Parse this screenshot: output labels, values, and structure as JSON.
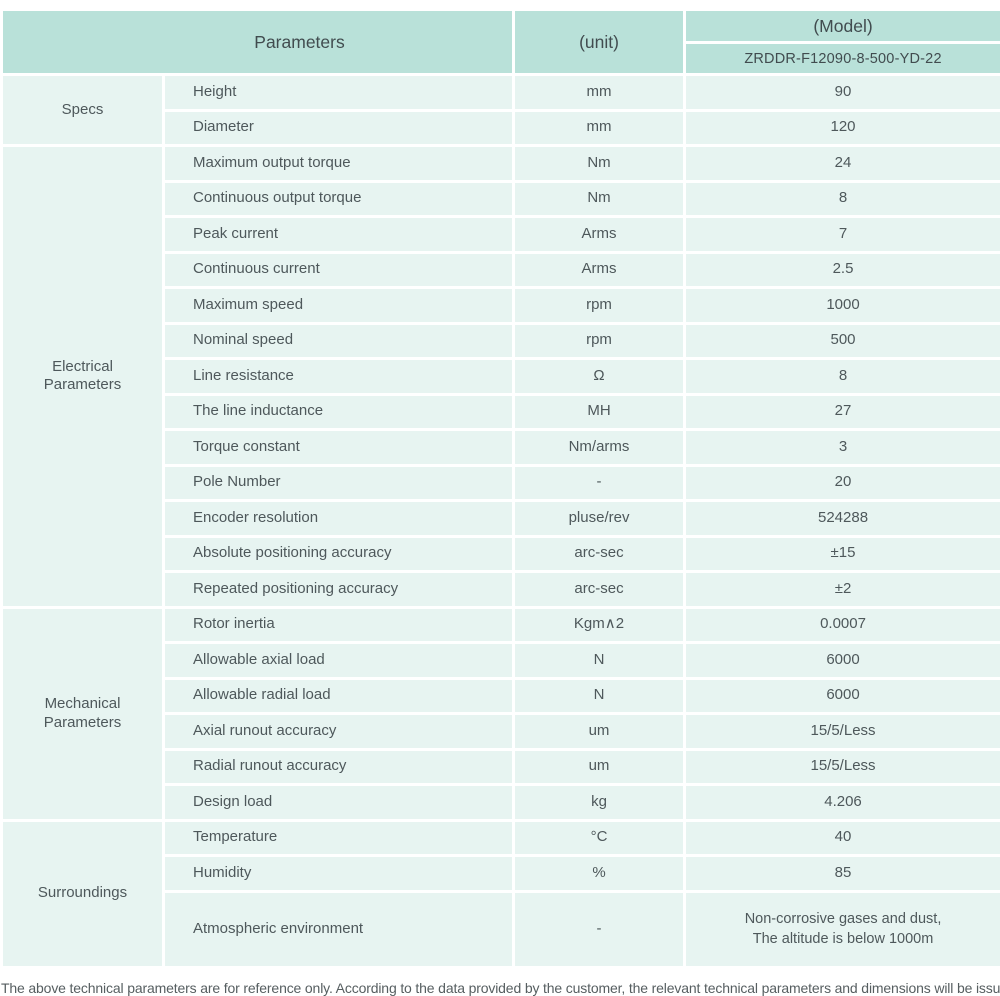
{
  "colors": {
    "header_bg": "#b9e1d9",
    "row_bg": "#e7f4f1",
    "text": "#4e585b"
  },
  "table": {
    "header": {
      "parameters_label": "Parameters",
      "unit_label": "(unit)",
      "model_label": "(Model)",
      "model_value": "ZRDDR-F12090-8-500-YD-22"
    },
    "sections": [
      {
        "name": "Specs",
        "rows": [
          {
            "param": "Height",
            "unit": "mm",
            "value": "90"
          },
          {
            "param": "Diameter",
            "unit": "mm",
            "value": "120"
          }
        ]
      },
      {
        "name": "Electrical Parameters",
        "name_lines": [
          "Electrical",
          "Parameters"
        ],
        "rows": [
          {
            "param": "Maximum output torque",
            "unit": "Nm",
            "value": "24"
          },
          {
            "param": "Continuous output torque",
            "unit": "Nm",
            "value": "8"
          },
          {
            "param": "Peak current",
            "unit": "Arms",
            "value": "7"
          },
          {
            "param": "Continuous current",
            "unit": "Arms",
            "value": "2.5"
          },
          {
            "param": "Maximum speed",
            "unit": "rpm",
            "value": "1000"
          },
          {
            "param": "Nominal speed",
            "unit": "rpm",
            "value": "500"
          },
          {
            "param": "Line resistance",
            "unit": "Ω",
            "value": "8"
          },
          {
            "param": "The line inductance",
            "unit": "MH",
            "value": "27"
          },
          {
            "param": "Torque constant",
            "unit": "Nm/arms",
            "value": "3"
          },
          {
            "param": "Pole Number",
            "unit": "-",
            "value": "20"
          },
          {
            "param": "Encoder resolution",
            "unit": "pluse/rev",
            "value": "524288"
          },
          {
            "param": "Absolute positioning accuracy",
            "unit": "arc-sec",
            "value": "±15"
          },
          {
            "param": "Repeated positioning accuracy",
            "unit": "arc-sec",
            "value": "±2"
          }
        ]
      },
      {
        "name": "Mechanical Parameters",
        "name_lines": [
          "Mechanical",
          "Parameters"
        ],
        "rows": [
          {
            "param": "Rotor inertia",
            "unit": "Kgm∧2",
            "value": "0.0007"
          },
          {
            "param": "Allowable axial load",
            "unit": "N",
            "value": "6000"
          },
          {
            "param": "Allowable radial load",
            "unit": "N",
            "value": "6000"
          },
          {
            "param": "Axial runout accuracy",
            "unit": "um",
            "value": "15/5/Less"
          },
          {
            "param": "Radial runout accuracy",
            "unit": "um",
            "value": "15/5/Less"
          },
          {
            "param": "Design load",
            "unit": "kg",
            "value": "4.206"
          }
        ]
      },
      {
        "name": "Surroundings",
        "rows": [
          {
            "param": "Temperature",
            "unit": "°C",
            "value": "40"
          },
          {
            "param": "Humidity",
            "unit": "%",
            "value": "85"
          },
          {
            "param": "Atmospheric environment",
            "unit": "-",
            "value_lines": [
              "Non-corrosive gases and dust,",
              "The altitude is below 1000m"
            ],
            "tall": true
          }
        ]
      }
    ],
    "footnote": "The above technical parameters are for reference only. According to the data provided by the customer, the relevant technical parameters and dimensions will be issued."
  }
}
